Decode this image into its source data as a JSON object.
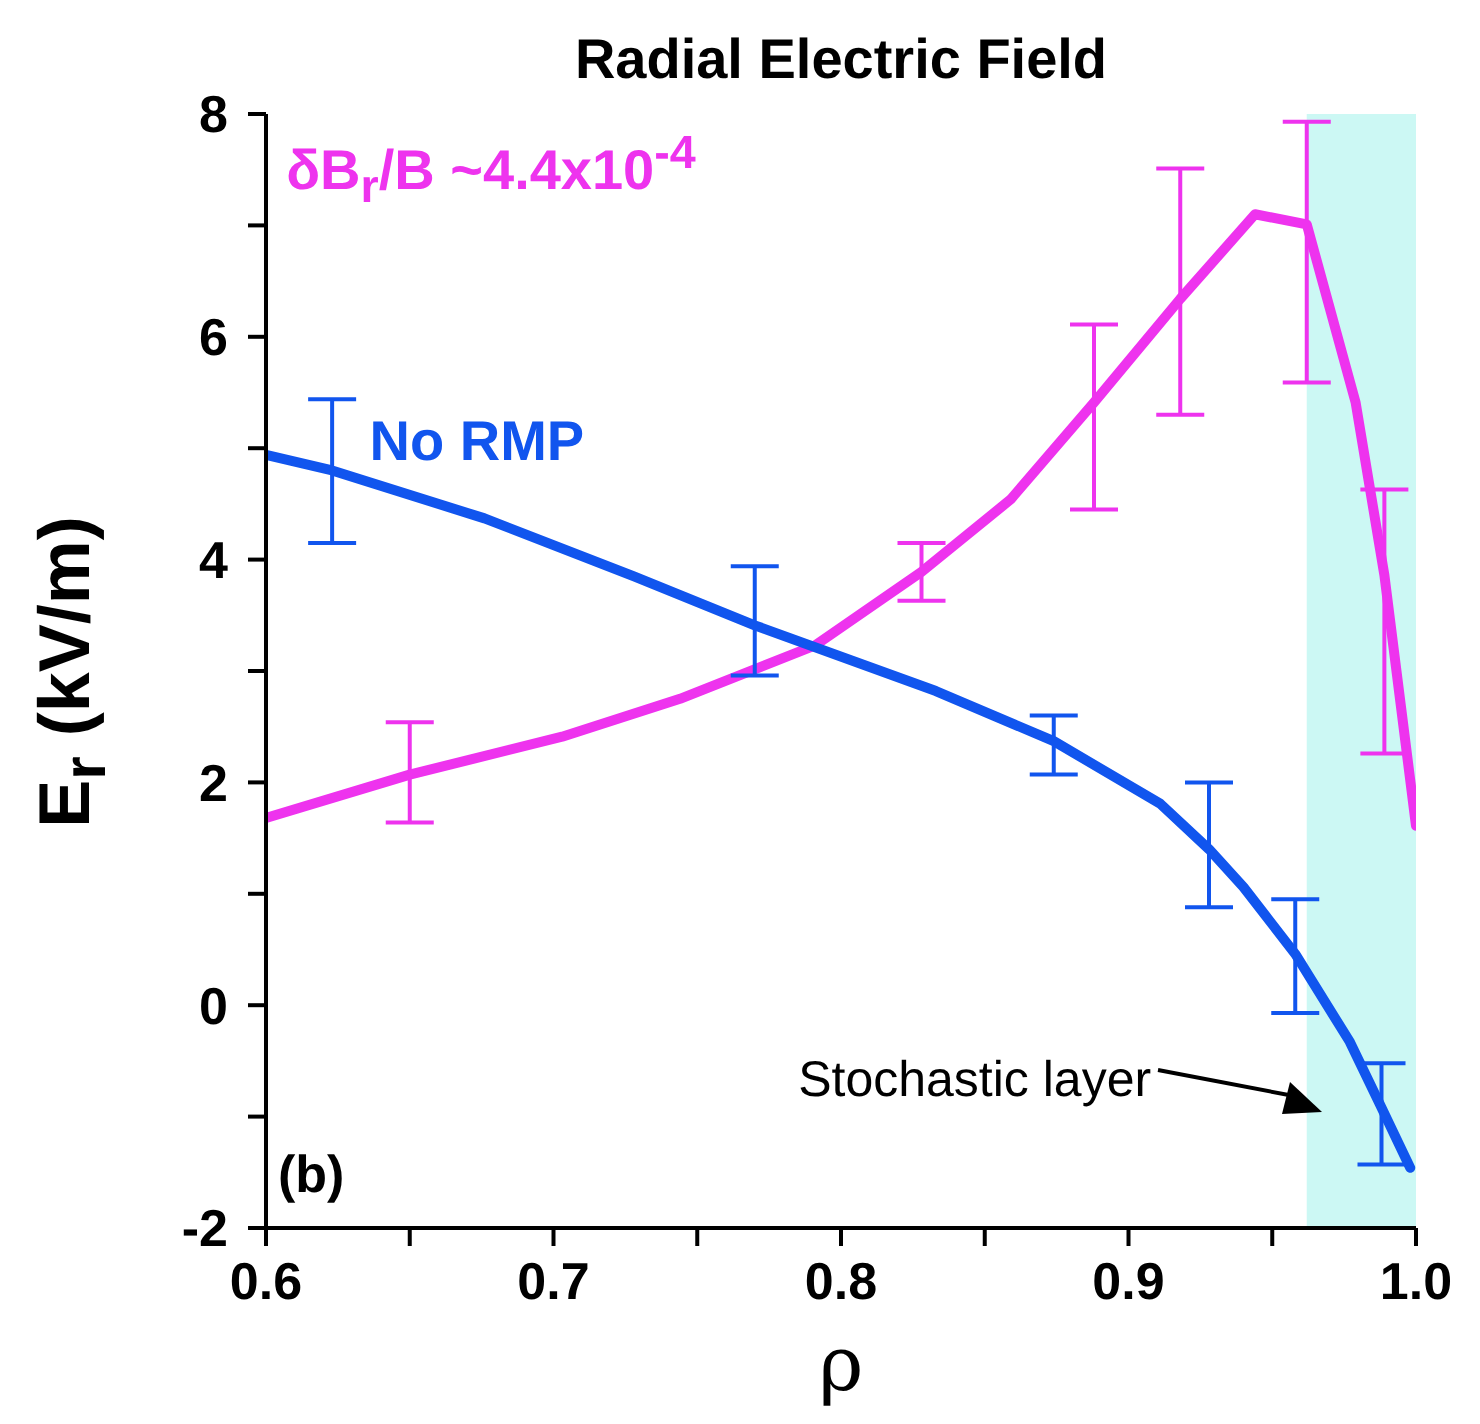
{
  "chart_data": {
    "type": "line",
    "title": "Radial Electric Field",
    "xlabel": "ρ",
    "ylabel": "E$_{r}$ (kV/m)",
    "xlim": [
      0.6,
      1.0
    ],
    "xticks": [
      0.6,
      {
        "value": 0.65,
        "label": null
      },
      0.7,
      {
        "value": 0.75,
        "label": null
      },
      0.8,
      {
        "value": 0.85,
        "label": null
      },
      0.9,
      {
        "value": 0.95,
        "label": null
      },
      {
        "value": 1.0,
        "label": "1.0"
      }
    ],
    "ylim": [
      -2,
      8
    ],
    "yticks": [
      -2,
      {
        "value": -1,
        "label": null
      },
      0,
      {
        "value": 1,
        "label": null
      },
      2,
      {
        "value": 3,
        "label": null
      },
      4,
      {
        "value": 5,
        "label": null
      },
      6,
      {
        "value": 7,
        "label": null
      },
      8
    ],
    "grid": false,
    "legend": false,
    "marker": "none",
    "line_style": "solid",
    "series": [
      {
        "name": "δB$_{r}$/B ~4.4x10$^{-4}$",
        "color": "#ee33ee",
        "x": [
          0.6,
          0.65,
          0.703,
          0.744,
          0.791,
          0.828,
          0.859,
          0.888,
          0.918,
          0.944,
          0.962,
          0.979,
          0.989,
          1.0
        ],
        "values": [
          1.68,
          2.07,
          2.41,
          2.75,
          3.23,
          3.89,
          4.54,
          5.41,
          6.34,
          7.1,
          7.01,
          5.41,
          3.86,
          1.61
        ],
        "errors": [
          null,
          [
            1.64,
            2.54
          ],
          null,
          null,
          null,
          [
            3.63,
            4.15
          ],
          null,
          [
            4.45,
            6.11
          ],
          [
            5.3,
            7.51
          ],
          null,
          [
            5.59,
            7.93
          ],
          null,
          [
            2.26,
            4.63
          ],
          null
        ]
      },
      {
        "name": "No RMP",
        "color": "#1155ee",
        "x": [
          0.6,
          0.623,
          0.676,
          0.728,
          0.77,
          0.833,
          0.874,
          0.911,
          0.928,
          0.94,
          0.958,
          0.977,
          0.988,
          0.998
        ],
        "values": [
          4.94,
          4.8,
          4.37,
          3.85,
          3.41,
          2.82,
          2.37,
          1.81,
          1.4,
          1.06,
          0.46,
          -0.33,
          -0.92,
          -1.46
        ],
        "errors": [
          null,
          [
            4.15,
            5.44
          ],
          null,
          null,
          [
            2.96,
            3.94
          ],
          null,
          [
            2.07,
            2.6
          ],
          null,
          [
            0.88,
            2.0
          ],
          null,
          [
            -0.07,
            0.95
          ],
          null,
          [
            -1.43,
            -0.52
          ],
          null
        ]
      }
    ],
    "bands": [
      {
        "axis": "x",
        "from": 0.962,
        "to": 1.0,
        "color": "#ccf8f4"
      }
    ],
    "annotations": [
      "(b)",
      "Stochastic layer"
    ]
  }
}
